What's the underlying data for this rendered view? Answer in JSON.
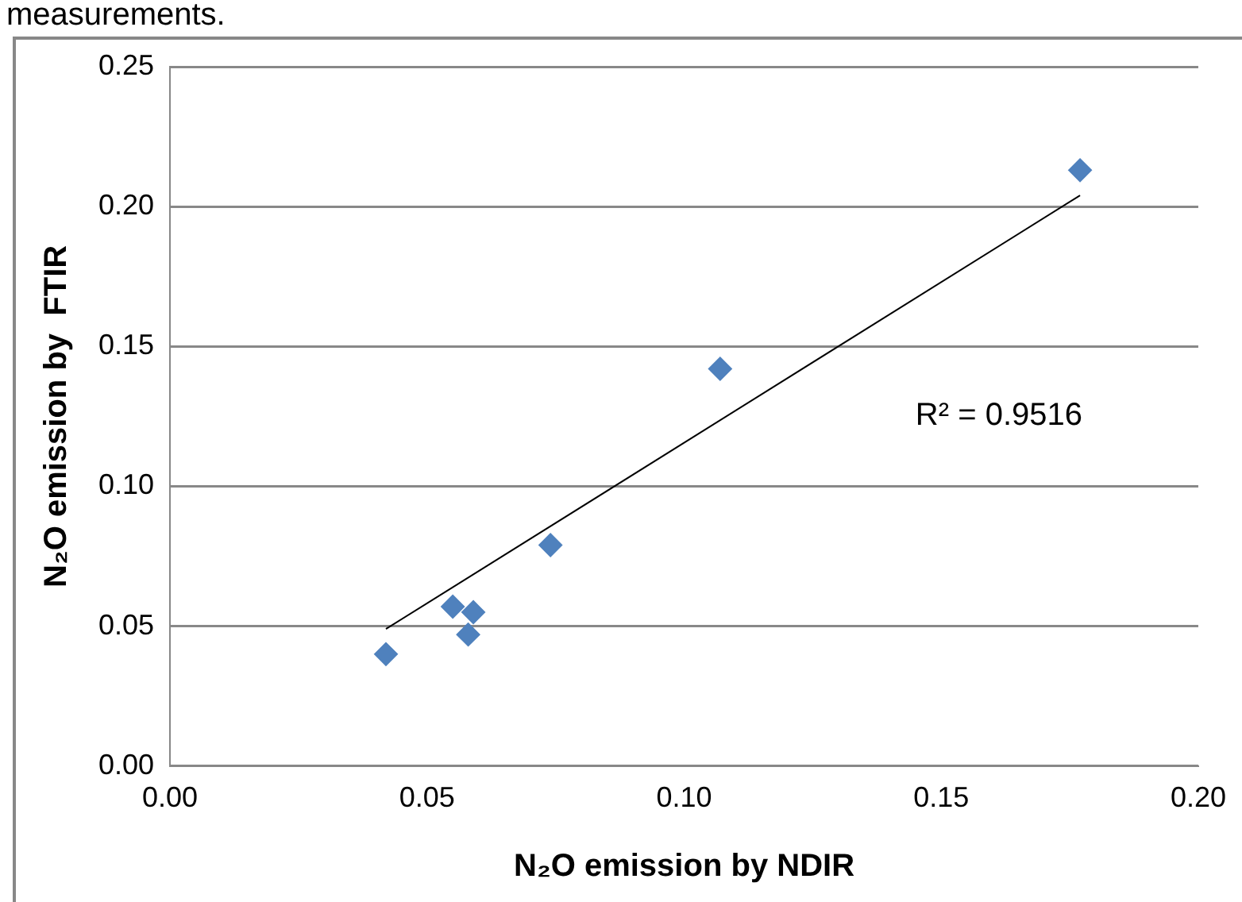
{
  "chart_data": {
    "type": "scatter",
    "xlabel": "N₂O emission by NDIR",
    "ylabel": "N₂O emission by  FTIR",
    "xlim": [
      0,
      0.2
    ],
    "xticks": [
      {
        "value": 0,
        "label": "0.00"
      },
      {
        "value": 0.05,
        "label": "0.05"
      },
      {
        "value": 0.1,
        "label": "0.10"
      },
      {
        "value": 0.15,
        "label": "0.15"
      },
      {
        "value": 0.2,
        "label": "0.20"
      }
    ],
    "ylim": [
      0,
      0.25
    ],
    "yticks": [
      {
        "value": 0,
        "label": "0.00"
      },
      {
        "value": 0.05,
        "label": "0.05"
      },
      {
        "value": 0.1,
        "label": "0.10"
      },
      {
        "value": 0.15,
        "label": "0.15"
      },
      {
        "value": 0.2,
        "label": "0.20"
      },
      {
        "value": 0.25,
        "label": "0.25"
      }
    ],
    "grid": "y",
    "legend": false,
    "series": [
      {
        "type": "scatter",
        "marker": "diamond",
        "color": "#4f81bd",
        "x": [
          0.042,
          0.055,
          0.059,
          0.058,
          0.074,
          0.107,
          0.177
        ],
        "values": [
          0.04,
          0.057,
          0.055,
          0.047,
          0.079,
          0.142,
          0.213
        ]
      },
      {
        "type": "line",
        "color": "#000000",
        "x": [
          0.042,
          0.177
        ],
        "values": [
          0.049,
          0.204
        ]
      }
    ],
    "annotations": [
      "measurements.",
      "R² = 0.9516"
    ]
  }
}
